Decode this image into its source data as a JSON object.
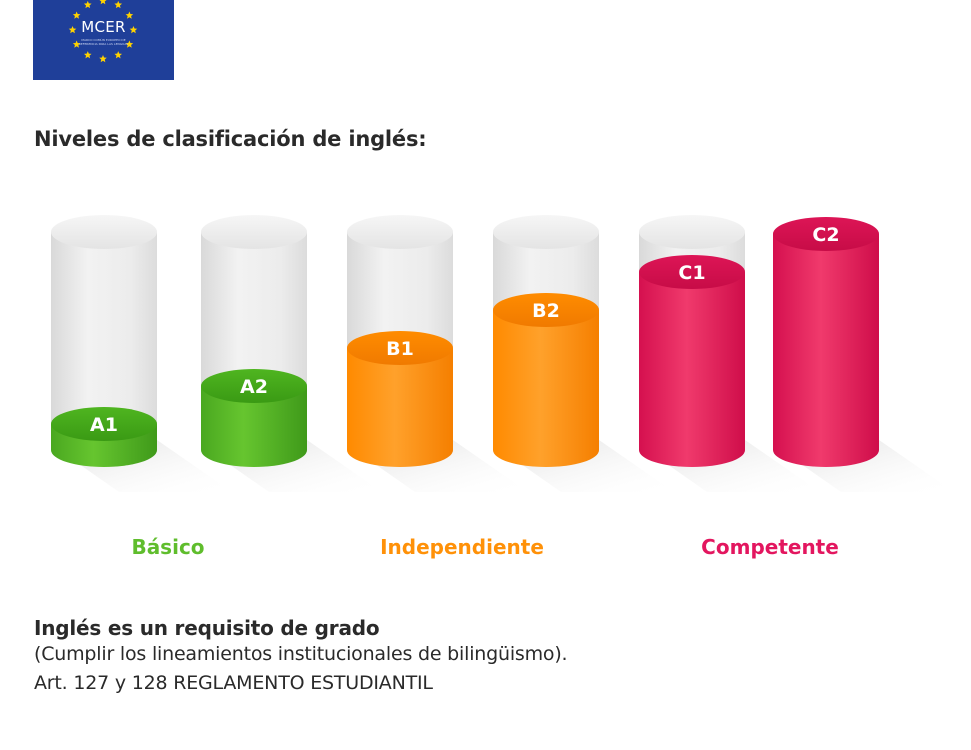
{
  "logo": {
    "text": "MCER",
    "subtext": "MARCO COMÚN EUROPEO DE REFERENCIA PARA LAS LENGUAS",
    "background": "#1f3f99",
    "star_color": "#ffd200"
  },
  "heading": "Niveles de clasificación de inglés:",
  "chart_data": {
    "type": "bar",
    "categories": [
      "A1",
      "A2",
      "B1",
      "B2",
      "C1",
      "C2"
    ],
    "values": [
      1,
      2,
      3,
      4,
      5,
      6
    ],
    "ylim": [
      0,
      6
    ],
    "groups": [
      {
        "name": "Básico",
        "levels": [
          "A1",
          "A2"
        ],
        "color": "#5fbd2c"
      },
      {
        "name": "Independiente",
        "levels": [
          "B1",
          "B2"
        ],
        "color": "#ff9108"
      },
      {
        "name": "Competente",
        "levels": [
          "C1",
          "C2"
        ],
        "color": "#e3165f"
      }
    ],
    "empty_color": "#e6e6e6",
    "grid": false
  },
  "groups": {
    "basic": {
      "label": "Básico",
      "color": "#5fbd2c"
    },
    "independent": {
      "label": "Independiente",
      "color": "#ff9108"
    },
    "competent": {
      "label": "Competente",
      "color": "#e3165f"
    }
  },
  "note": {
    "title": "Inglés es un requisito de grado",
    "line1": "(Cumplir los lineamientos institucionales de bilingüismo).",
    "line2": "Art. 127 y 128 REGLAMENTO ESTUDIANTIL"
  }
}
